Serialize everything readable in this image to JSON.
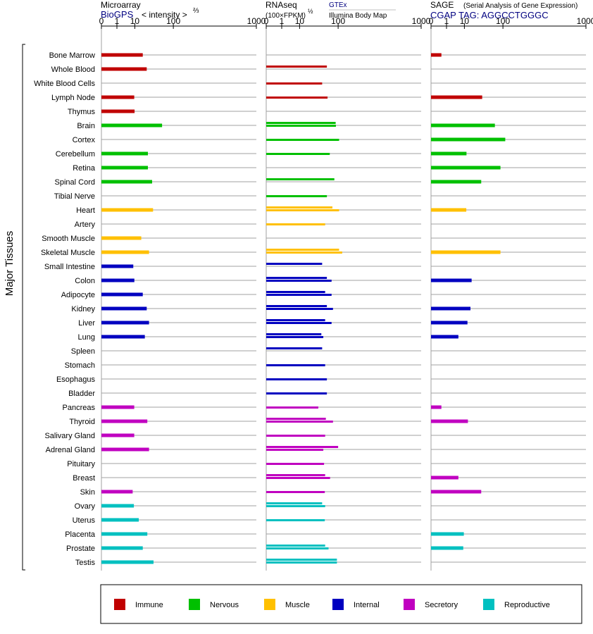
{
  "colors": {
    "immune": "#c00000",
    "nervous": "#00c000",
    "muscle": "#ffc000",
    "internal": "#0000c0",
    "secretory": "#c000c0",
    "reproductive": "#00c0c0",
    "grid": "#a0a0a0",
    "link": "#000080"
  },
  "row_axis_label": "Major Tissues",
  "legend": [
    {
      "key": "immune",
      "label": "Immune"
    },
    {
      "key": "nervous",
      "label": "Nervous"
    },
    {
      "key": "muscle",
      "label": "Muscle"
    },
    {
      "key": "internal",
      "label": "Internal"
    },
    {
      "key": "secretory",
      "label": "Secretory"
    },
    {
      "key": "reproductive",
      "label": "Reproductive"
    }
  ],
  "panels": [
    {
      "title": "Microarray",
      "source": "BioGPS",
      "scale_note": "< intensity >",
      "scale_exp": "⅔",
      "extra_title": "",
      "extra_subtitle": ""
    },
    {
      "title": "RNAseq",
      "source": "",
      "scale_note": "(100×FPKM)",
      "scale_exp": "½",
      "extra_title": "GTEx",
      "extra_subtitle": "Illumina Body Map"
    },
    {
      "title": "SAGE",
      "source": "CGAP TAG: AGGCCTGGGC",
      "scale_note": "(Serial Analysis of Gene Expression)",
      "scale_exp": "",
      "extra_title": "",
      "extra_subtitle": ""
    }
  ],
  "chart_data": {
    "type": "bar",
    "orientation": "horizontal",
    "x_scale": "power (root) scale as labeled on each panel",
    "x_ticks": [
      "0",
      "1",
      "10",
      "100",
      "1000"
    ],
    "xlim": [
      0,
      1000
    ],
    "categories": [
      "Bone Marrow",
      "Whole Blood",
      "White Blood Cells",
      "Lymph Node",
      "Thymus",
      "Brain",
      "Cortex",
      "Cerebellum",
      "Retina",
      "Spinal Cord",
      "Tibial Nerve",
      "Heart",
      "Artery",
      "Smooth Muscle",
      "Skeletal Muscle",
      "Small Intestine",
      "Colon",
      "Adipocyte",
      "Kidney",
      "Liver",
      "Lung",
      "Spleen",
      "Stomach",
      "Esophagus",
      "Bladder",
      "Pancreas",
      "Thyroid",
      "Salivary Gland",
      "Adrenal Gland",
      "Pituitary",
      "Breast",
      "Skin",
      "Ovary",
      "Uterus",
      "Placenta",
      "Prostate",
      "Testis"
    ],
    "groups": [
      "immune",
      "immune",
      "immune",
      "immune",
      "immune",
      "nervous",
      "nervous",
      "nervous",
      "nervous",
      "nervous",
      "nervous",
      "muscle",
      "muscle",
      "muscle",
      "muscle",
      "internal",
      "internal",
      "internal",
      "internal",
      "internal",
      "internal",
      "internal",
      "internal",
      "internal",
      "internal",
      "secretory",
      "secretory",
      "secretory",
      "secretory",
      "secretory",
      "secretory",
      "secretory",
      "reproductive",
      "reproductive",
      "reproductive",
      "reproductive",
      "reproductive"
    ],
    "series": [
      {
        "name": "Microarray",
        "values": [
          19,
          25,
          null,
          9.5,
          9.8,
          60,
          null,
          27,
          27,
          35,
          null,
          37,
          null,
          17,
          29,
          8.7,
          9.6,
          19,
          25,
          29,
          22,
          null,
          null,
          null,
          null,
          9.5,
          26,
          9.5,
          29,
          null,
          null,
          8.2,
          9.2,
          14,
          26,
          19,
          38
        ]
      },
      {
        "name": "RNAseq",
        "paired": true,
        "values": [
          [
            null,
            null
          ],
          [
            60,
            null
          ],
          [
            null,
            47
          ],
          [
            null,
            62
          ],
          [
            null,
            null
          ],
          [
            90,
            91
          ],
          [
            null,
            104
          ],
          [
            null,
            69
          ],
          [
            null,
            null
          ],
          [
            85,
            null
          ],
          [
            null,
            60
          ],
          [
            78,
            104
          ],
          [
            null,
            55
          ],
          [
            null,
            null
          ],
          [
            104,
            118
          ],
          [
            47,
            null
          ],
          [
            60,
            75
          ],
          [
            55,
            75
          ],
          [
            60,
            80
          ],
          [
            55,
            75
          ],
          [
            45,
            50
          ],
          [
            47,
            null
          ],
          [
            null,
            55
          ],
          [
            null,
            60
          ],
          [
            null,
            60
          ],
          [
            null,
            38
          ],
          [
            57,
            80
          ],
          [
            null,
            55
          ],
          [
            100,
            50
          ],
          [
            null,
            52
          ],
          [
            55,
            70
          ],
          [
            null,
            54
          ],
          [
            47,
            55
          ],
          [
            null,
            54
          ],
          [
            null,
            null
          ],
          [
            55,
            65
          ],
          [
            95,
            95
          ]
        ]
      },
      {
        "name": "SAGE",
        "values": [
          0.3,
          null,
          null,
          36,
          null,
          70,
          110,
          12,
          90,
          34,
          null,
          11.8,
          null,
          null,
          90,
          null,
          18,
          null,
          16.5,
          13,
          5.5,
          null,
          null,
          null,
          null,
          0.3,
          13.5,
          null,
          null,
          null,
          5.5,
          34,
          null,
          null,
          9.5,
          9,
          null
        ]
      }
    ]
  }
}
